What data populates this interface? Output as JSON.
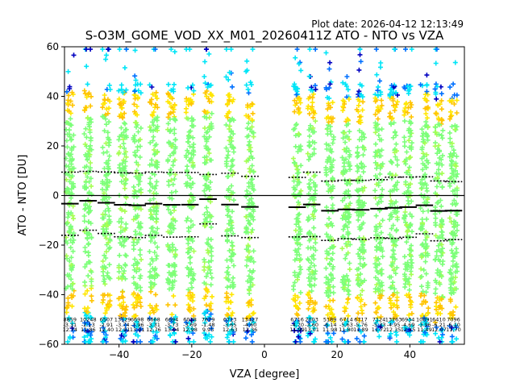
{
  "header": {
    "plot_date": "Plot date: 2026-04-12 12:13:49",
    "title": "S-O3M_GOME_VOD_XX_M01_20260411Z ATO - NTO vs VZA"
  },
  "chart_data": {
    "type": "scatter",
    "title": "S-O3M_GOME_VOD_XX_M01_20260411Z ATO - NTO vs VZA",
    "xlabel": "VZA [degree]",
    "ylabel": "ATO - NTO [DU]",
    "xlim": [
      -55,
      55
    ],
    "ylim": [
      -60,
      60
    ],
    "xticks": [
      -40,
      -20,
      0,
      20,
      40
    ],
    "yticks": [
      -60,
      -40,
      -20,
      0,
      20,
      40,
      60
    ],
    "grid": false,
    "marker": "+",
    "point_colors": [
      "#7cff79",
      "#ffe600",
      "#ffc400",
      "#00e5f7",
      "#0070ff",
      "#0000c0",
      "#a6ff52"
    ],
    "bin_centers": [
      -53.5,
      -48.5,
      -43.5,
      -39,
      -35,
      -30.5,
      -25.5,
      -20.5,
      -15.5,
      -9.5,
      -4,
      9,
      13,
      18,
      22.5,
      26.5,
      31.5,
      35.5,
      39.5,
      44,
      48,
      52
    ],
    "bin_counts": [
      "8859",
      "10248",
      "6507",
      "13129",
      "6698",
      "6668",
      "6694",
      "6028",
      "7679",
      "6713",
      "13427",
      "6716",
      "2003",
      "5189",
      "6714",
      "6717",
      "7124",
      "13763",
      "6934",
      "10091",
      "6410",
      "7096"
    ],
    "bin_means": [
      "-3.31",
      "-2.13",
      "-2.91",
      "-3.74",
      "-3.96",
      "-3.31",
      "-3.73",
      "-3.69",
      "-1.48",
      "-3.65",
      "-4.60",
      "-4.70",
      "-3.60",
      "-6.14",
      "-5.63",
      "-5.76",
      "-5.33",
      "-4.95",
      "-4.69",
      "-3.96",
      "-6.21",
      "-6.10"
    ],
    "bin_stds": [
      "12.74",
      "11.86",
      "12.40",
      "12.91",
      "13.01",
      "12.76",
      "13.04",
      "12.98",
      "9.95",
      "12.63",
      "12.36",
      "11.99",
      "13.01",
      "11.98",
      "11.80",
      "11.89",
      "11.72",
      "12.35",
      "12.15",
      "11.49",
      "12.07",
      "11.70"
    ],
    "series": [
      {
        "name": "mean",
        "style": "solid",
        "x": [
          -53.5,
          -48.5,
          -43.5,
          -39,
          -35,
          -30.5,
          -25.5,
          -20.5,
          -15.5,
          -9.5,
          -4,
          9,
          13,
          18,
          22.5,
          26.5,
          31.5,
          35.5,
          39.5,
          44,
          48,
          52
        ],
        "values": [
          -3.31,
          -2.13,
          -2.91,
          -3.74,
          -3.96,
          -3.31,
          -3.73,
          -3.69,
          -1.48,
          -3.65,
          -4.6,
          -4.7,
          -3.6,
          -6.14,
          -5.63,
          -5.76,
          -5.33,
          -4.95,
          -4.69,
          -3.96,
          -6.21,
          -6.1
        ]
      },
      {
        "name": "mean + std",
        "style": "dotted",
        "x": [
          -53.5,
          -48.5,
          -43.5,
          -39,
          -35,
          -30.5,
          -25.5,
          -20.5,
          -15.5,
          -9.5,
          -4,
          9,
          13,
          18,
          22.5,
          26.5,
          31.5,
          35.5,
          39.5,
          44,
          48,
          52
        ],
        "values": [
          9.43,
          9.73,
          9.49,
          9.17,
          9.05,
          9.45,
          9.31,
          9.29,
          8.47,
          8.98,
          7.76,
          7.29,
          9.41,
          5.84,
          6.17,
          6.13,
          6.39,
          7.4,
          7.46,
          7.53,
          5.86,
          5.6
        ]
      },
      {
        "name": "mean - std",
        "style": "dotted",
        "x": [
          -53.5,
          -48.5,
          -43.5,
          -39,
          -35,
          -30.5,
          -25.5,
          -20.5,
          -15.5,
          -9.5,
          -4,
          9,
          13,
          18,
          22.5,
          26.5,
          31.5,
          35.5,
          39.5,
          44,
          48,
          52
        ],
        "values": [
          -16.05,
          -13.99,
          -15.31,
          -16.65,
          -16.97,
          -16.07,
          -16.77,
          -16.67,
          -11.43,
          -16.28,
          -16.96,
          -16.69,
          -16.61,
          -18.12,
          -17.43,
          -17.65,
          -17.05,
          -17.3,
          -16.84,
          -15.45,
          -18.28,
          -17.8
        ]
      }
    ]
  }
}
